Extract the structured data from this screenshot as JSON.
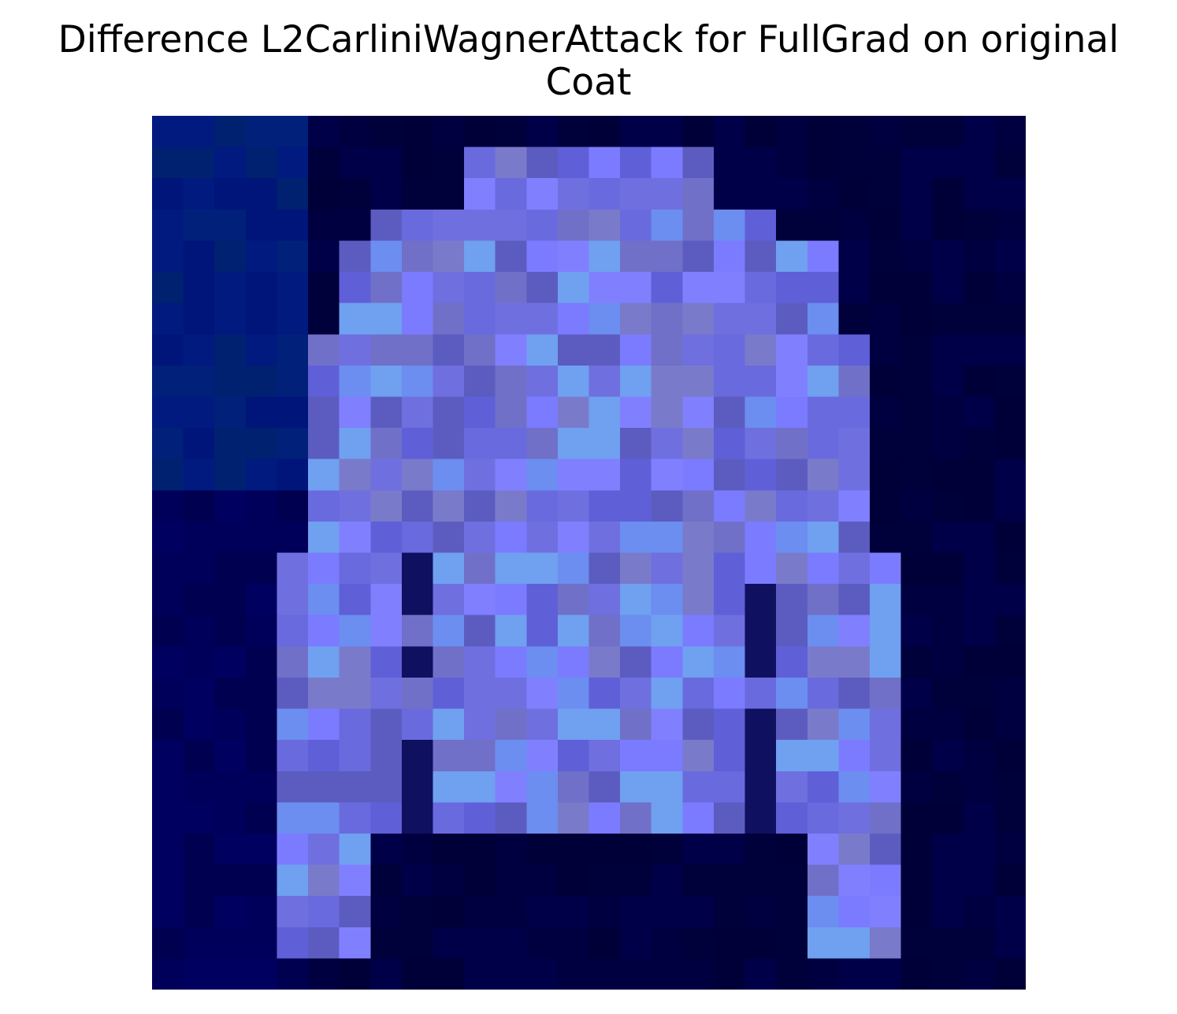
{
  "figure": {
    "title_line1": "Difference L2CarliniWagnerAttack for FullGrad on original",
    "title_line2": "Coat"
  },
  "image": {
    "type": "pixel-grid",
    "rows": 28,
    "cols": 28,
    "background_color": "#000033",
    "description_colors": {
      "dark": "#000033",
      "mid": "#000080",
      "light": "#7b7bff",
      "bright": "#70b0f0"
    }
  }
}
